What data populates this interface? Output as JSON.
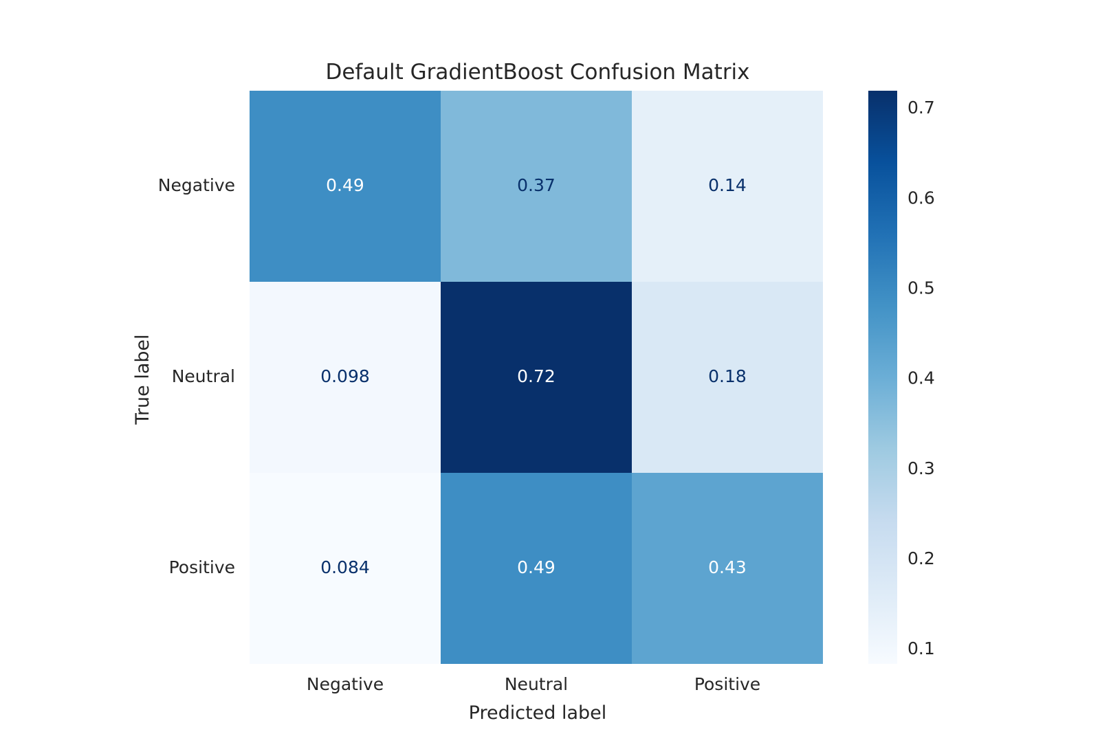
{
  "chart_data": {
    "type": "heatmap",
    "title": "Default GradientBoost Confusion Matrix",
    "xlabel": "Predicted label",
    "ylabel": "True label",
    "x_categories": [
      "Negative",
      "Neutral",
      "Positive"
    ],
    "y_categories": [
      "Negative",
      "Neutral",
      "Positive"
    ],
    "values": [
      [
        0.49,
        0.37,
        0.14
      ],
      [
        0.098,
        0.72,
        0.18
      ],
      [
        0.084,
        0.49,
        0.43
      ]
    ],
    "value_labels": [
      [
        "0.49",
        "0.37",
        "0.14"
      ],
      [
        "0.098",
        "0.72",
        "0.18"
      ],
      [
        "0.084",
        "0.49",
        "0.43"
      ]
    ],
    "colorscale": "Blues",
    "colorbar": {
      "range": [
        0.084,
        0.72
      ],
      "ticks": [
        0.1,
        0.2,
        0.3,
        0.4,
        0.5,
        0.6,
        0.7
      ],
      "tick_labels": [
        "0.1",
        "0.2",
        "0.3",
        "0.4",
        "0.5",
        "0.6",
        "0.7"
      ]
    },
    "grid": false,
    "text_colors": {
      "light": "#ffffff",
      "dark": "#08306b"
    }
  }
}
